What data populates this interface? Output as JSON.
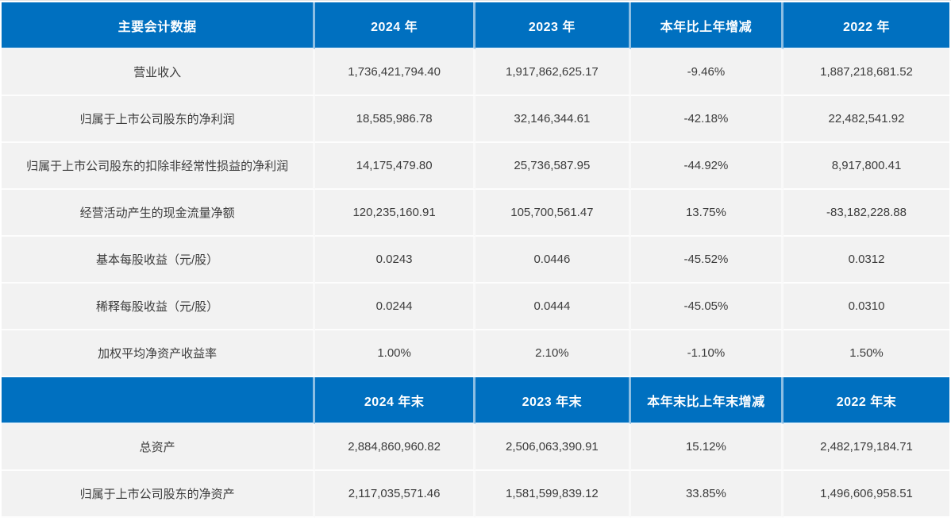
{
  "colors": {
    "header_background": "#0070C0",
    "header_text": "#FFFFFF",
    "cell_background": "#F2F2F2",
    "cell_text": "#3C3C3C"
  },
  "table": {
    "sections": [
      {
        "headers": [
          "主要会计数据",
          "2024 年",
          "2023 年",
          "本年比上年增减",
          "2022 年"
        ],
        "rows": [
          [
            "营业收入",
            "1,736,421,794.40",
            "1,917,862,625.17",
            "-9.46%",
            "1,887,218,681.52"
          ],
          [
            "归属于上市公司股东的净利润",
            "18,585,986.78",
            "32,146,344.61",
            "-42.18%",
            "22,482,541.92"
          ],
          [
            "归属于上市公司股东的扣除非经常性损益的净利润",
            "14,175,479.80",
            "25,736,587.95",
            "-44.92%",
            "8,917,800.41"
          ],
          [
            "经营活动产生的现金流量净额",
            "120,235,160.91",
            "105,700,561.47",
            "13.75%",
            "-83,182,228.88"
          ],
          [
            "基本每股收益（元/股）",
            "0.0243",
            "0.0446",
            "-45.52%",
            "0.0312"
          ],
          [
            "稀释每股收益（元/股）",
            "0.0244",
            "0.0444",
            "-45.05%",
            "0.0310"
          ],
          [
            "加权平均净资产收益率",
            "1.00%",
            "2.10%",
            "-1.10%",
            "1.50%"
          ]
        ]
      },
      {
        "headers": [
          "",
          "2024 年末",
          "2023 年末",
          "本年末比上年末增减",
          "2022 年末"
        ],
        "rows": [
          [
            "总资产",
            "2,884,860,960.82",
            "2,506,063,390.91",
            "15.12%",
            "2,482,179,184.71"
          ],
          [
            "归属于上市公司股东的净资产",
            "2,117,035,571.46",
            "1,581,599,839.12",
            "33.85%",
            "1,496,606,958.51"
          ]
        ]
      }
    ]
  }
}
